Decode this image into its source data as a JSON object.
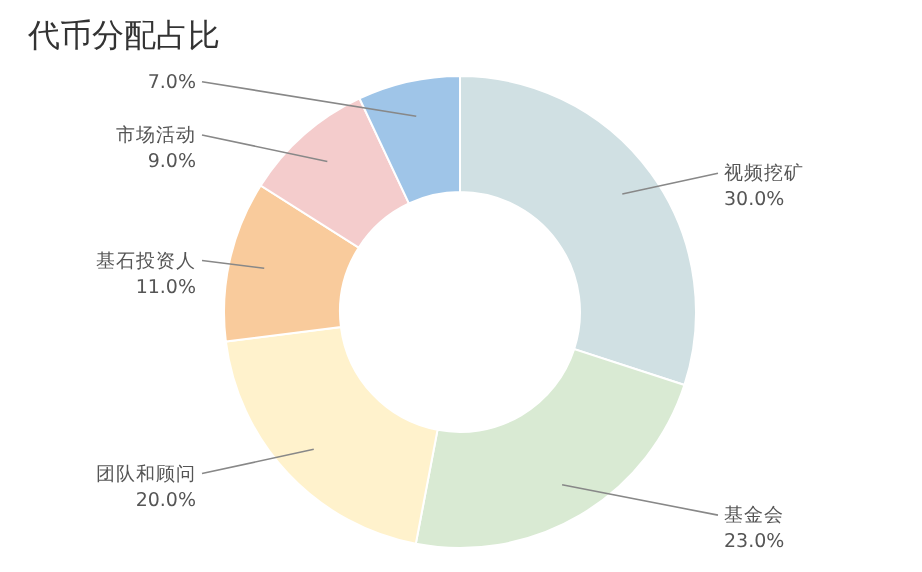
{
  "chart_data": {
    "type": "donut",
    "title": "代币分配占比",
    "categories": [
      "视频挖矿",
      "基金会",
      "团队和顾问",
      "基石投资人",
      "市场活动",
      null
    ],
    "values": [
      30.0,
      23.0,
      20.0,
      11.0,
      9.0,
      7.0
    ],
    "colors": [
      "#d0e0e3",
      "#d9ead3",
      "#fff2cc",
      "#f9cb9c",
      "#f4cccc",
      "#9fc5e8"
    ],
    "value_labels": [
      "30.0%",
      "23.0%",
      "20.0%",
      "11.0%",
      "9.0%",
      "7.0%"
    ]
  }
}
